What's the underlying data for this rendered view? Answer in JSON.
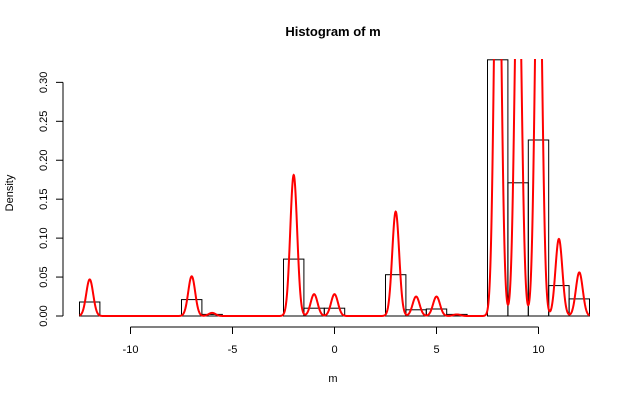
{
  "chart_data": {
    "type": "bar",
    "title": "Histogram of m",
    "xlabel": "m",
    "ylabel": "Density",
    "xlim": [
      -12.5,
      12.5
    ],
    "ylim": [
      0,
      0.33
    ],
    "x_ticks": [
      -10,
      -5,
      0,
      5,
      10
    ],
    "x_tick_labels": [
      "-10",
      "-5",
      "0",
      "5",
      "10"
    ],
    "y_ticks": [
      0.0,
      0.05,
      0.1,
      0.15,
      0.2,
      0.25,
      0.3
    ],
    "y_tick_labels": [
      "0.00",
      "0.05",
      "0.10",
      "0.15",
      "0.20",
      "0.25",
      "0.30"
    ],
    "grid": false,
    "histogram": {
      "name": "",
      "bin_edges": [
        -12.5,
        -11.5,
        -10.5,
        -9.5,
        -8.5,
        -7.5,
        -6.5,
        -5.5,
        -4.5,
        -3.5,
        -2.5,
        -1.5,
        -0.5,
        0.5,
        1.5,
        2.5,
        3.5,
        4.5,
        5.5,
        6.5,
        7.5,
        8.5,
        9.5,
        10.5,
        11.5,
        12.5
      ],
      "densities": [
        0.018,
        0,
        0,
        0,
        0,
        0.021,
        0.002,
        0,
        0,
        0,
        0.073,
        0.01,
        0.01,
        0,
        0,
        0.053,
        0.008,
        0.009,
        0.002,
        0,
        0.329,
        0.171,
        0.226,
        0.039,
        0.022
      ]
    },
    "density_curve": {
      "name": "",
      "color": "#ff0000",
      "bandwidth": 0.17,
      "peaks": [
        {
          "x": -12,
          "y": 0.047
        },
        {
          "x": -7,
          "y": 0.051
        },
        {
          "x": -6,
          "y": 0.004
        },
        {
          "x": -2,
          "y": 0.181
        },
        {
          "x": -1,
          "y": 0.028
        },
        {
          "x": 0,
          "y": 0.028
        },
        {
          "x": 3,
          "y": 0.134
        },
        {
          "x": 4,
          "y": 0.025
        },
        {
          "x": 5,
          "y": 0.025
        },
        {
          "x": 6,
          "y": 0.002
        },
        {
          "x": 8,
          "y": 0.6
        },
        {
          "x": 9,
          "y": 0.5
        },
        {
          "x": 10,
          "y": 0.55
        },
        {
          "x": 11,
          "y": 0.099
        },
        {
          "x": 12,
          "y": 0.056
        }
      ]
    }
  }
}
